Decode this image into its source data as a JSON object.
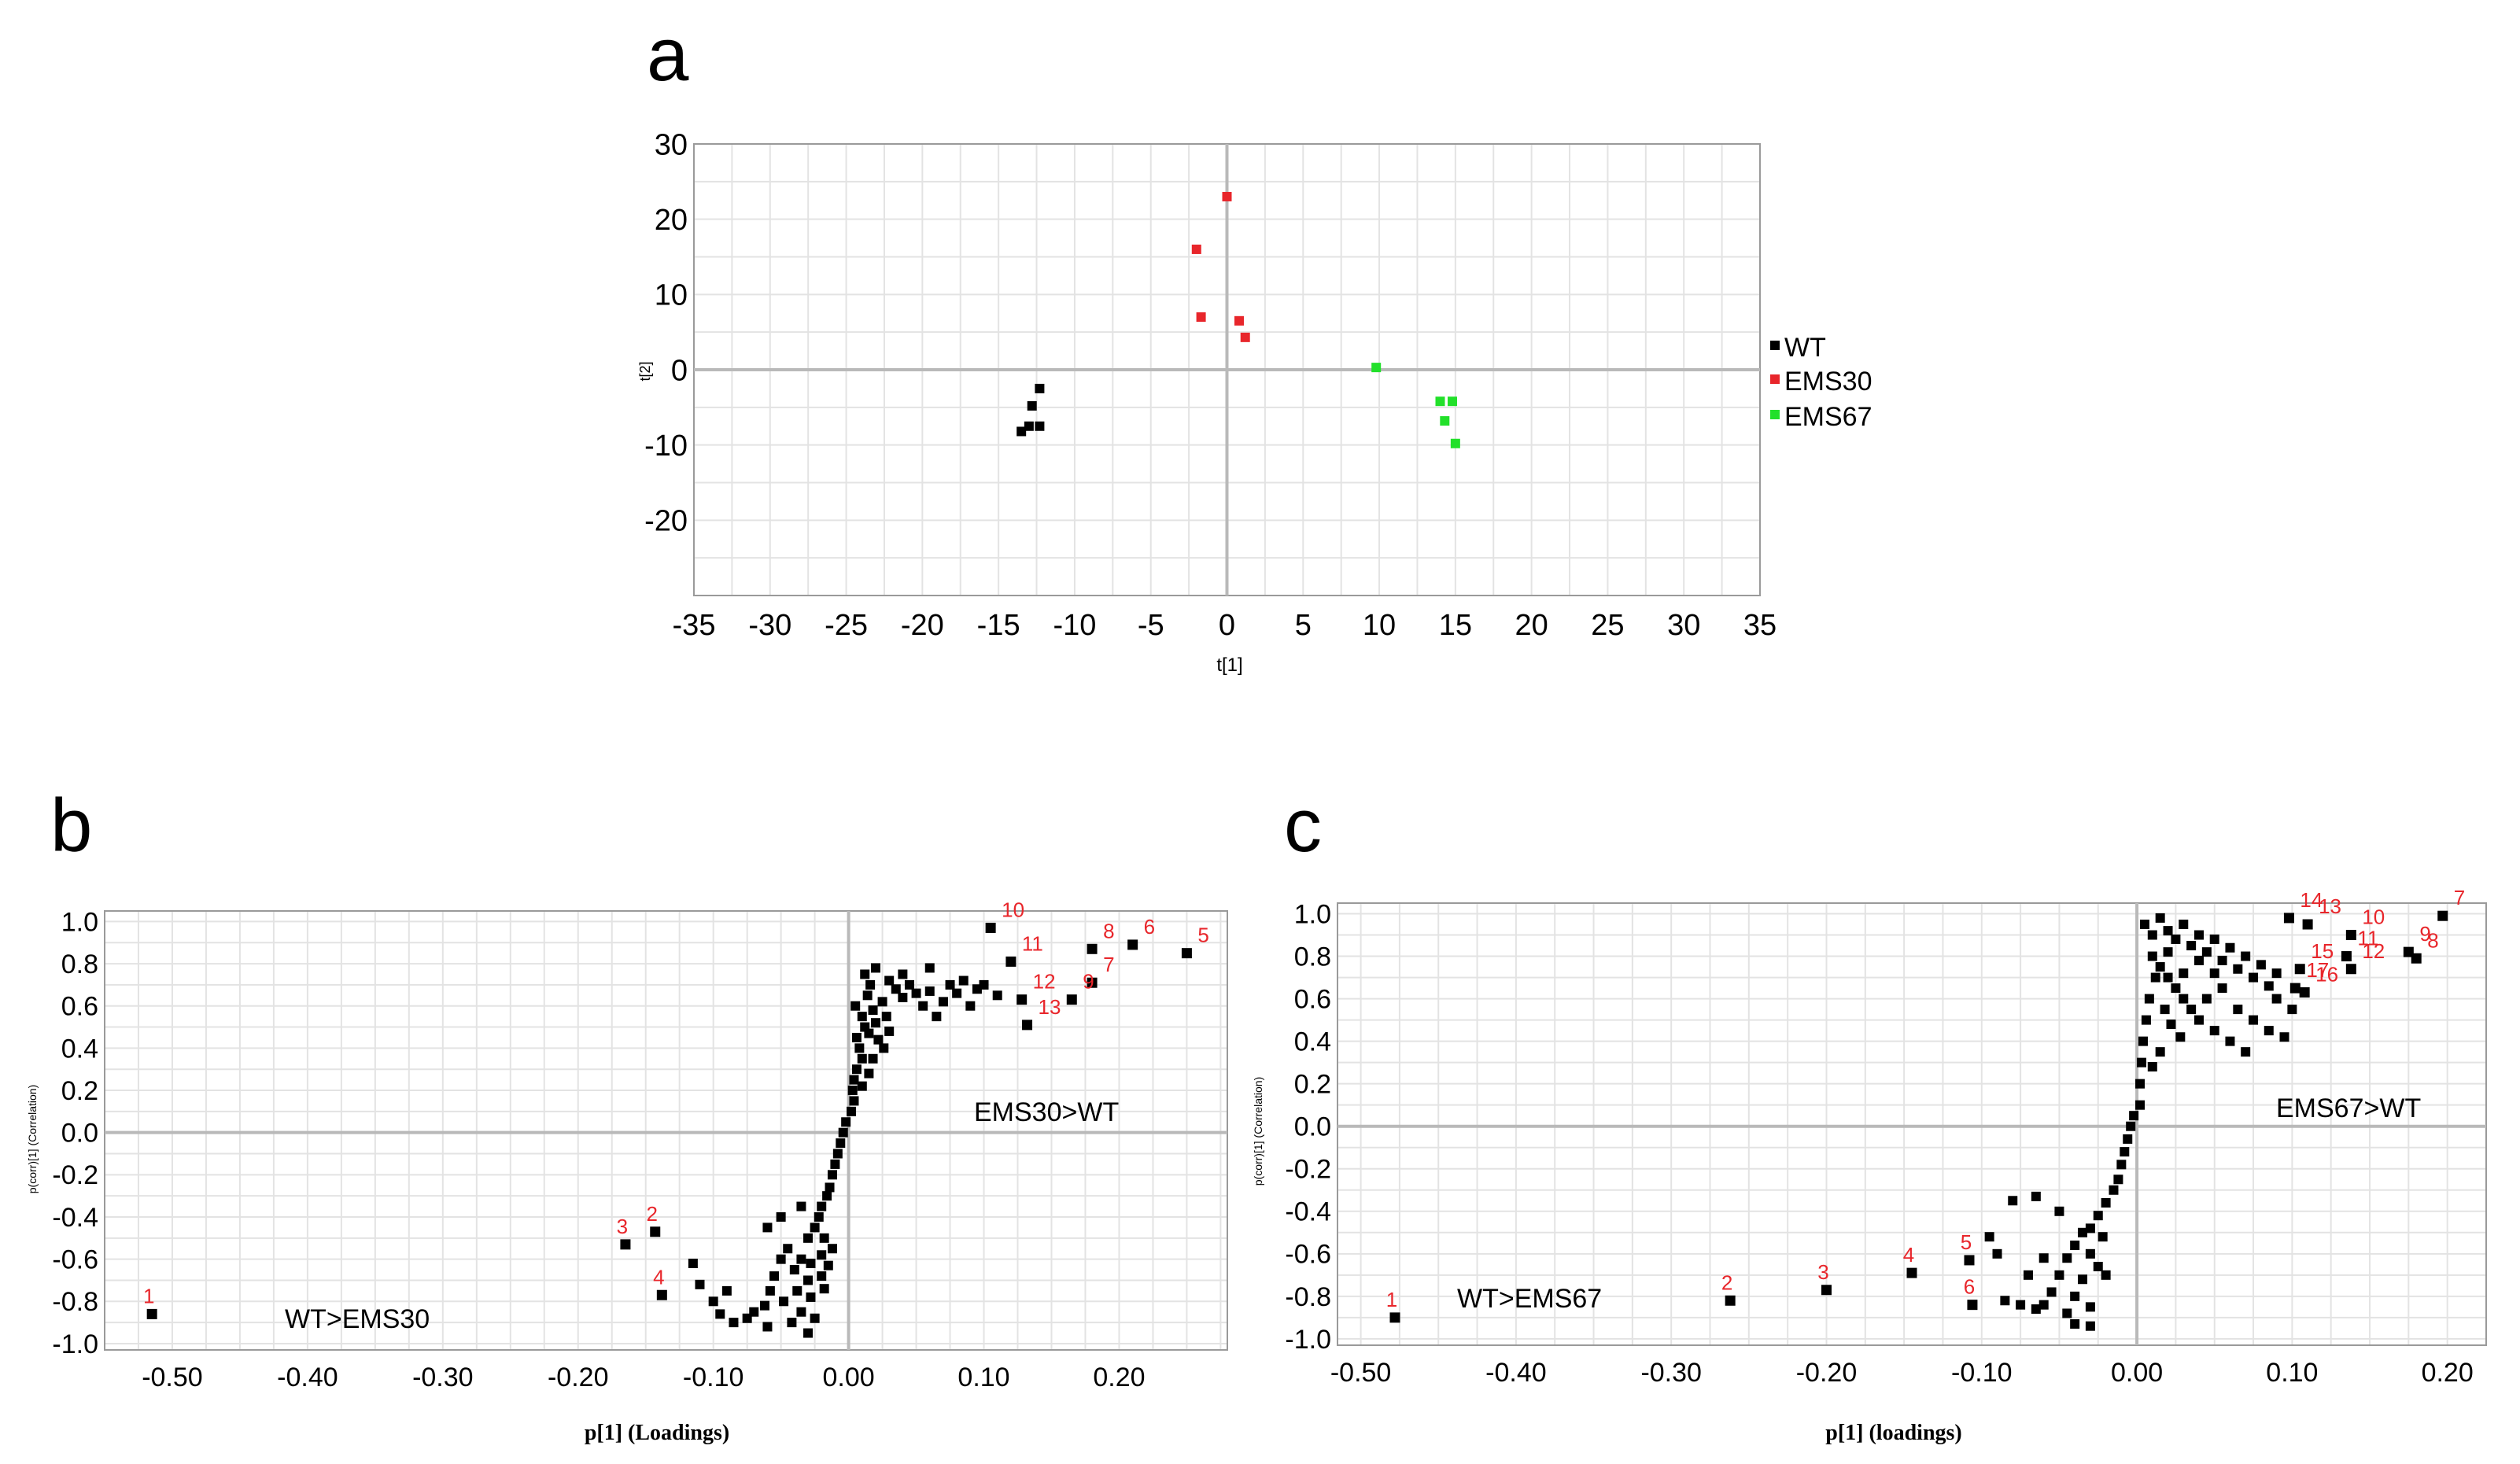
{
  "colors": {
    "WT": "#000000",
    "EMS30": "#e8262b",
    "EMS67": "#22e02a",
    "label": "#e8262b"
  },
  "chart_data": [
    {
      "id": "a",
      "panel_letter": "a",
      "type": "scatter",
      "xlabel": "t[1]",
      "ylabel": "t[2]",
      "xlim": [
        -35,
        35
      ],
      "ylim": [
        -30,
        30
      ],
      "xticks": [
        -35,
        -30,
        -25,
        -20,
        -15,
        -10,
        -5,
        0,
        5,
        10,
        15,
        20,
        25,
        30,
        35
      ],
      "yticks": [
        30,
        20,
        10,
        0,
        -10,
        -20
      ],
      "grid": true,
      "legend_position": "right",
      "series": [
        {
          "name": "WT",
          "color": "#000000",
          "points": [
            [
              -13.5,
              -8.2
            ],
            [
              -13.0,
              -7.5
            ],
            [
              -12.3,
              -7.5
            ],
            [
              -12.8,
              -4.8
            ],
            [
              -12.3,
              -2.5
            ]
          ]
        },
        {
          "name": "EMS30",
          "color": "#e8262b",
          "points": [
            [
              0,
              23
            ],
            [
              -2,
              16
            ],
            [
              -1.7,
              7
            ],
            [
              0.8,
              6.5
            ],
            [
              1.2,
              4.3
            ]
          ]
        },
        {
          "name": "EMS67",
          "color": "#22e02a",
          "points": [
            [
              9.8,
              0.3
            ],
            [
              14.0,
              -4.2
            ],
            [
              14.8,
              -4.2
            ],
            [
              14.3,
              -6.8
            ],
            [
              15.0,
              -9.8
            ]
          ]
        }
      ]
    },
    {
      "id": "b",
      "panel_letter": "b",
      "type": "scatter",
      "xlabel": "p[1] (Loadings)",
      "ylabel": "p(corr)[1] (Correlation)",
      "xlim": [
        -0.55,
        0.28
      ],
      "ylim": [
        -1.03,
        1.05
      ],
      "xticks": [
        "-0.50",
        "-0.40",
        "-0.30",
        "-0.20",
        "-0.10",
        "0.00",
        "0.10",
        "0.20"
      ],
      "yticks": [
        "1.0",
        "0.8",
        "0.6",
        "0.4",
        "0.2",
        "0.0",
        "-0.2",
        "-0.4",
        "-0.6",
        "-0.8",
        "-1.0"
      ],
      "grid": true,
      "annotations": {
        "upper": "EMS30>WT",
        "lower": "WT>EMS30"
      },
      "labeled_points": [
        {
          "label": "1",
          "x": -0.515,
          "y": -0.86
        },
        {
          "label": "2",
          "x": -0.143,
          "y": -0.47
        },
        {
          "label": "3",
          "x": -0.165,
          "y": -0.53
        },
        {
          "label": "4",
          "x": -0.138,
          "y": -0.77
        },
        {
          "label": "5",
          "x": 0.25,
          "y": 0.85
        },
        {
          "label": "6",
          "x": 0.21,
          "y": 0.89
        },
        {
          "label": "7",
          "x": 0.18,
          "y": 0.71
        },
        {
          "label": "8",
          "x": 0.18,
          "y": 0.87
        },
        {
          "label": "9",
          "x": 0.165,
          "y": 0.63
        },
        {
          "label": "10",
          "x": 0.105,
          "y": 0.97
        },
        {
          "label": "11",
          "x": 0.12,
          "y": 0.81
        },
        {
          "label": "12",
          "x": 0.128,
          "y": 0.63
        },
        {
          "label": "13",
          "x": 0.132,
          "y": 0.51
        }
      ],
      "cluster_points": [
        [
          0.005,
          0.6
        ],
        [
          0.01,
          0.55
        ],
        [
          0.012,
          0.5
        ],
        [
          0.006,
          0.45
        ],
        [
          0.008,
          0.4
        ],
        [
          0.01,
          0.35
        ],
        [
          0.006,
          0.3
        ],
        [
          0.004,
          0.25
        ],
        [
          0.003,
          0.2
        ],
        [
          0.004,
          0.15
        ],
        [
          0.002,
          0.1
        ],
        [
          0.014,
          0.65
        ],
        [
          0.018,
          0.58
        ],
        [
          0.02,
          0.52
        ],
        [
          0.015,
          0.47
        ],
        [
          0.022,
          0.44
        ],
        [
          0.016,
          0.7
        ],
        [
          0.025,
          0.62
        ],
        [
          0.028,
          0.55
        ],
        [
          0.012,
          0.75
        ],
        [
          0.02,
          0.78
        ],
        [
          0.03,
          0.72
        ],
        [
          0.035,
          0.68
        ],
        [
          0.04,
          0.64
        ],
        [
          0.045,
          0.7
        ],
        [
          0.05,
          0.66
        ],
        [
          0.055,
          0.6
        ],
        [
          0.06,
          0.67
        ],
        [
          0.07,
          0.62
        ],
        [
          0.075,
          0.7
        ],
        [
          0.08,
          0.66
        ],
        [
          0.085,
          0.72
        ],
        [
          0.09,
          0.6
        ],
        [
          0.095,
          0.68
        ],
        [
          0.1,
          0.7
        ],
        [
          0.11,
          0.65
        ],
        [
          0.04,
          0.75
        ],
        [
          0.06,
          0.78
        ],
        [
          0.065,
          0.55
        ],
        [
          0.03,
          0.48
        ],
        [
          0.026,
          0.4
        ],
        [
          0.018,
          0.35
        ],
        [
          0.015,
          0.28
        ],
        [
          0.01,
          0.22
        ],
        [
          -0.002,
          0.05
        ],
        [
          -0.004,
          0.0
        ],
        [
          -0.006,
          -0.05
        ],
        [
          -0.008,
          -0.1
        ],
        [
          -0.01,
          -0.15
        ],
        [
          -0.012,
          -0.2
        ],
        [
          -0.014,
          -0.26
        ],
        [
          -0.016,
          -0.3
        ],
        [
          -0.02,
          -0.35
        ],
        [
          -0.022,
          -0.4
        ],
        [
          -0.025,
          -0.45
        ],
        [
          -0.018,
          -0.5
        ],
        [
          -0.03,
          -0.5
        ],
        [
          -0.012,
          -0.55
        ],
        [
          -0.02,
          -0.58
        ],
        [
          -0.028,
          -0.62
        ],
        [
          -0.035,
          -0.6
        ],
        [
          -0.04,
          -0.65
        ],
        [
          -0.03,
          -0.7
        ],
        [
          -0.02,
          -0.68
        ],
        [
          -0.015,
          -0.63
        ],
        [
          -0.045,
          -0.55
        ],
        [
          -0.05,
          -0.6
        ],
        [
          -0.055,
          -0.68
        ],
        [
          -0.038,
          -0.75
        ],
        [
          -0.028,
          -0.78
        ],
        [
          -0.018,
          -0.74
        ],
        [
          -0.048,
          -0.8
        ],
        [
          -0.058,
          -0.75
        ],
        [
          -0.062,
          -0.82
        ],
        [
          -0.035,
          -0.85
        ],
        [
          -0.025,
          -0.88
        ],
        [
          -0.042,
          -0.9
        ],
        [
          -0.07,
          -0.85
        ],
        [
          -0.075,
          -0.88
        ],
        [
          -0.085,
          -0.9
        ],
        [
          -0.095,
          -0.86
        ],
        [
          -0.1,
          -0.8
        ],
        [
          -0.09,
          -0.75
        ],
        [
          -0.11,
          -0.72
        ],
        [
          -0.115,
          -0.62
        ],
        [
          -0.06,
          -0.45
        ],
        [
          -0.05,
          -0.4
        ],
        [
          -0.035,
          -0.35
        ],
        [
          -0.06,
          -0.92
        ],
        [
          -0.03,
          -0.95
        ]
      ]
    },
    {
      "id": "c",
      "panel_letter": "c",
      "type": "scatter",
      "xlabel": "p[1] (loadings)",
      "ylabel": "p(corr)[1] (Correlation)",
      "xlim": [
        -0.515,
        0.225
      ],
      "ylim": [
        -1.03,
        1.05
      ],
      "xticks": [
        "-0.50",
        "-0.40",
        "-0.30",
        "-0.20",
        "-0.10",
        "0.00",
        "0.10",
        "0.20"
      ],
      "yticks": [
        "1.0",
        "0.8",
        "0.6",
        "0.4",
        "0.2",
        "0.0",
        "-0.2",
        "-0.4",
        "-0.6",
        "-0.8",
        "-1.0"
      ],
      "grid": true,
      "annotations": {
        "upper": "EMS67>WT",
        "lower": "WT>EMS67"
      },
      "labeled_points": [
        {
          "label": "1",
          "x": -0.478,
          "y": -0.9
        },
        {
          "label": "2",
          "x": -0.262,
          "y": -0.82
        },
        {
          "label": "3",
          "x": -0.2,
          "y": -0.77
        },
        {
          "label": "4",
          "x": -0.145,
          "y": -0.69
        },
        {
          "label": "5",
          "x": -0.108,
          "y": -0.63
        },
        {
          "label": "6",
          "x": -0.106,
          "y": -0.84
        },
        {
          "label": "7",
          "x": 0.197,
          "y": 0.99
        },
        {
          "label": "8",
          "x": 0.18,
          "y": 0.79
        },
        {
          "label": "9",
          "x": 0.175,
          "y": 0.82
        },
        {
          "label": "10",
          "x": 0.138,
          "y": 0.9
        },
        {
          "label": "11",
          "x": 0.135,
          "y": 0.8
        },
        {
          "label": "12",
          "x": 0.138,
          "y": 0.74
        },
        {
          "label": "13",
          "x": 0.11,
          "y": 0.95
        },
        {
          "label": "14",
          "x": 0.098,
          "y": 0.98
        },
        {
          "label": "15",
          "x": 0.105,
          "y": 0.74
        },
        {
          "label": "16",
          "x": 0.108,
          "y": 0.63
        },
        {
          "label": "17",
          "x": 0.102,
          "y": 0.65
        }
      ],
      "cluster_points": [
        [
          0.005,
          0.95
        ],
        [
          0.01,
          0.9
        ],
        [
          0.015,
          0.98
        ],
        [
          0.02,
          0.92
        ],
        [
          0.025,
          0.88
        ],
        [
          0.03,
          0.95
        ],
        [
          0.035,
          0.85
        ],
        [
          0.04,
          0.9
        ],
        [
          0.045,
          0.82
        ],
        [
          0.05,
          0.88
        ],
        [
          0.055,
          0.78
        ],
        [
          0.06,
          0.84
        ],
        [
          0.065,
          0.74
        ],
        [
          0.07,
          0.8
        ],
        [
          0.075,
          0.7
        ],
        [
          0.08,
          0.76
        ],
        [
          0.085,
          0.66
        ],
        [
          0.09,
          0.72
        ],
        [
          0.01,
          0.8
        ],
        [
          0.015,
          0.75
        ],
        [
          0.02,
          0.7
        ],
        [
          0.025,
          0.65
        ],
        [
          0.03,
          0.6
        ],
        [
          0.035,
          0.55
        ],
        [
          0.04,
          0.5
        ],
        [
          0.05,
          0.45
        ],
        [
          0.06,
          0.4
        ],
        [
          0.07,
          0.35
        ],
        [
          0.045,
          0.6
        ],
        [
          0.055,
          0.65
        ],
        [
          0.03,
          0.72
        ],
        [
          0.02,
          0.82
        ],
        [
          0.012,
          0.7
        ],
        [
          0.008,
          0.6
        ],
        [
          0.006,
          0.5
        ],
        [
          0.004,
          0.4
        ],
        [
          0.003,
          0.3
        ],
        [
          0.002,
          0.2
        ],
        [
          0.002,
          0.1
        ],
        [
          0.018,
          0.55
        ],
        [
          0.022,
          0.48
        ],
        [
          0.028,
          0.42
        ],
        [
          0.015,
          0.35
        ],
        [
          0.01,
          0.28
        ],
        [
          0.065,
          0.55
        ],
        [
          0.075,
          0.5
        ],
        [
          0.085,
          0.45
        ],
        [
          0.09,
          0.6
        ],
        [
          0.1,
          0.55
        ],
        [
          0.095,
          0.42
        ],
        [
          0.05,
          0.72
        ],
        [
          0.04,
          0.78
        ],
        [
          -0.002,
          0.05
        ],
        [
          -0.004,
          0.0
        ],
        [
          -0.006,
          -0.06
        ],
        [
          -0.008,
          -0.12
        ],
        [
          -0.01,
          -0.18
        ],
        [
          -0.012,
          -0.25
        ],
        [
          -0.015,
          -0.3
        ],
        [
          -0.02,
          -0.36
        ],
        [
          -0.025,
          -0.42
        ],
        [
          -0.03,
          -0.48
        ],
        [
          -0.022,
          -0.52
        ],
        [
          -0.035,
          -0.5
        ],
        [
          -0.04,
          -0.56
        ],
        [
          -0.045,
          -0.62
        ],
        [
          -0.03,
          -0.6
        ],
        [
          -0.025,
          -0.66
        ],
        [
          -0.05,
          -0.7
        ],
        [
          -0.035,
          -0.72
        ],
        [
          -0.02,
          -0.7
        ],
        [
          -0.04,
          -0.8
        ],
        [
          -0.055,
          -0.78
        ],
        [
          -0.03,
          -0.85
        ],
        [
          -0.045,
          -0.88
        ],
        [
          -0.06,
          -0.84
        ],
        [
          -0.065,
          -0.86
        ],
        [
          -0.075,
          -0.84
        ],
        [
          -0.085,
          -0.82
        ],
        [
          -0.09,
          -0.6
        ],
        [
          -0.095,
          -0.52
        ],
        [
          -0.08,
          -0.35
        ],
        [
          -0.065,
          -0.33
        ],
        [
          -0.05,
          -0.4
        ],
        [
          -0.06,
          -0.62
        ],
        [
          -0.07,
          -0.7
        ],
        [
          -0.04,
          -0.93
        ],
        [
          -0.03,
          -0.94
        ]
      ]
    }
  ]
}
